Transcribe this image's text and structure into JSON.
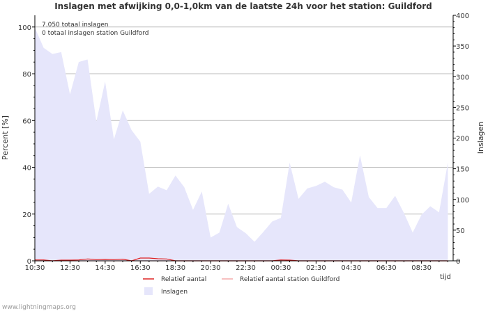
{
  "chart_data": {
    "type": "area",
    "title": "Inslagen met afwijking 0,0-1,0km van de laatste 24h voor het station: Guildford",
    "ylabel_left": "Percent   [%]",
    "ylabel_right": "Inslagen",
    "xlabel": "tijd",
    "ylim_left": [
      0,
      105
    ],
    "ylim_right": [
      0,
      400
    ],
    "xlim_hours": [
      0,
      23.8
    ],
    "y_ticks_left": [
      "0",
      "20",
      "40",
      "60",
      "80",
      "100"
    ],
    "y_ticks_right": [
      "0",
      "50",
      "100",
      "150",
      "200",
      "250",
      "300",
      "350",
      "400"
    ],
    "x_ticks": [
      "10:30",
      "12:30",
      "14:30",
      "16:30",
      "18:30",
      "20:30",
      "22:30",
      "00:30",
      "02:30",
      "04:30",
      "06:30",
      "08:30"
    ],
    "annotations": [
      "7.050 totaal inslagen",
      "0 totaal inslagen station Guildford"
    ],
    "x": [
      0,
      0.5,
      1,
      1.5,
      2,
      2.5,
      3,
      3.5,
      4,
      4.5,
      5,
      5.5,
      6,
      6.5,
      7,
      7.5,
      8,
      8.5,
      9,
      9.5,
      10,
      10.5,
      11,
      11.5,
      12,
      12.5,
      13,
      13.5,
      14,
      14.5,
      15,
      15.5,
      16,
      16.5,
      17,
      17.5,
      18,
      18.5,
      19,
      19.5,
      20,
      20.5,
      21,
      21.5,
      22,
      22.5,
      23,
      23.5
    ],
    "series": [
      {
        "name": "Inslagen",
        "axis": "right",
        "color": "#e6e6fb",
        "values": [
          380,
          347,
          337,
          340,
          271,
          324,
          328,
          227,
          292,
          198,
          245,
          213,
          194,
          109,
          121,
          115,
          139,
          120,
          83,
          113,
          38,
          46,
          93,
          55,
          45,
          31,
          47,
          64,
          70,
          160,
          101,
          118,
          122,
          129,
          120,
          116,
          95,
          172,
          104,
          86,
          86,
          106,
          78,
          46,
          75,
          89,
          79,
          160
        ]
      },
      {
        "name": "Relatief aantal",
        "axis": "left",
        "color": "#dd2222",
        "values": [
          0.4,
          0.4,
          0,
          0.3,
          0.3,
          0.4,
          0.8,
          0.5,
          0.6,
          0.5,
          0.7,
          0,
          1.2,
          1.2,
          0.9,
          0.8,
          0,
          0,
          0,
          0,
          0,
          0,
          0,
          0,
          0,
          0,
          0,
          0,
          0.4,
          0.3,
          0,
          0,
          0,
          0,
          0,
          0,
          0,
          0,
          0,
          0,
          0,
          0,
          0,
          0,
          0,
          0,
          0,
          0
        ]
      },
      {
        "name": "Relatief aantal station Guildford",
        "axis": "left",
        "color": "#f4aaaa",
        "values": [
          0,
          0,
          0,
          0,
          0,
          0,
          0,
          0,
          0,
          0,
          0,
          0,
          0,
          0,
          0,
          0,
          0,
          0,
          0,
          0,
          0,
          0,
          0,
          0,
          0,
          0,
          0,
          0,
          0,
          0,
          0,
          0,
          0,
          0,
          0,
          0,
          0,
          0,
          0,
          0,
          0,
          0,
          0,
          0,
          0,
          0,
          0,
          0
        ]
      }
    ]
  },
  "footer": "www.lightningmaps.org"
}
